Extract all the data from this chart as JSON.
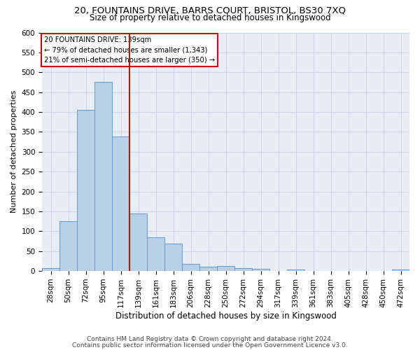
{
  "title1": "20, FOUNTAINS DRIVE, BARRS COURT, BRISTOL, BS30 7XQ",
  "title2": "Size of property relative to detached houses in Kingswood",
  "xlabel": "Distribution of detached houses by size in Kingswood",
  "ylabel": "Number of detached properties",
  "footer1": "Contains HM Land Registry data © Crown copyright and database right 2024.",
  "footer2": "Contains public sector information licensed under the Open Government Licence v3.0.",
  "bar_labels": [
    "28sqm",
    "50sqm",
    "72sqm",
    "95sqm",
    "117sqm",
    "139sqm",
    "161sqm",
    "183sqm",
    "206sqm",
    "228sqm",
    "250sqm",
    "272sqm",
    "294sqm",
    "317sqm",
    "339sqm",
    "361sqm",
    "383sqm",
    "405sqm",
    "428sqm",
    "450sqm",
    "472sqm"
  ],
  "bar_values": [
    8,
    125,
    405,
    475,
    338,
    145,
    85,
    68,
    18,
    11,
    13,
    8,
    5,
    0,
    4,
    0,
    0,
    0,
    0,
    0,
    4
  ],
  "bar_color": "#b8cfe8",
  "bar_edge_color": "#6699cc",
  "vline_color": "#cc0000",
  "vline_index": 4.5,
  "annotation_text": "20 FOUNTAINS DRIVE: 139sqm\n← 79% of detached houses are smaller (1,343)\n21% of semi-detached houses are larger (350) →",
  "annotation_box_color": "#cc0000",
  "ylim": [
    0,
    600
  ],
  "yticks": [
    0,
    50,
    100,
    150,
    200,
    250,
    300,
    350,
    400,
    450,
    500,
    550,
    600
  ],
  "grid_color": "#c8d4e8",
  "background_color": "#e8edf5",
  "title1_fontsize": 9.5,
  "title2_fontsize": 8.5,
  "ylabel_fontsize": 8,
  "xlabel_fontsize": 8.5,
  "tick_fontsize": 7.5,
  "footer_fontsize": 6.5
}
